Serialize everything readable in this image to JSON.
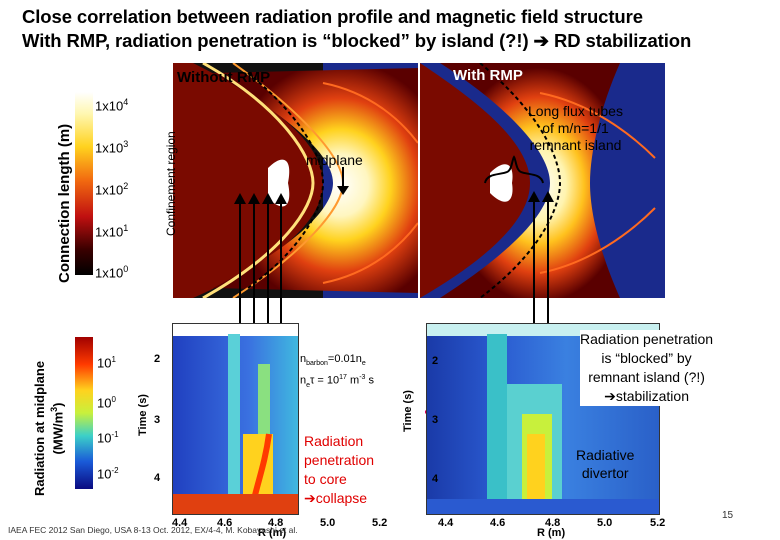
{
  "header": {
    "line1": "Close correlation between radiation profile and magnetic field structure",
    "line2": "With RMP, radiation penetration is “blocked” by island (?!) ➔ RD stabilization"
  },
  "top": {
    "ylabel": "Connection length (m)",
    "colorbar_ticks": [
      "1x10",
      "1x10",
      "1x10",
      "1x10",
      "1x10"
    ],
    "colorbar_exps": [
      "4",
      "3",
      "2",
      "1",
      "0"
    ],
    "left_title": "Without RMP",
    "right_title": "With RMP",
    "confinement_label": "Confinement region",
    "midplane_label": "midplane",
    "flux_tube_label": [
      "Long flux tubes",
      "of m/n=1/1",
      "remnant island"
    ]
  },
  "bottom": {
    "ylabel_line1": "Radiation at midplane",
    "ylabel_line2": "(MW/m",
    "ylabel_sup": "3",
    "ylabel_end": ")",
    "colorbar_ticks": [
      "10",
      "10",
      "10",
      "10"
    ],
    "colorbar_exps": [
      "1",
      "0",
      "-1",
      "-2"
    ],
    "time_label": "Time (s)",
    "time_ticks": [
      "2",
      "3",
      "4"
    ],
    "r_ticks": [
      "4.4",
      "4.6",
      "4.8",
      "5.0",
      "5.2"
    ],
    "r_label": "R (m)",
    "nbarbon_line1_a": "n",
    "nbarbon_line1_sub": "barbon",
    "nbarbon_line1_b": "=0.01n",
    "nbarbon_line1_sub2": "e",
    "nbarbon_line2_a": "n",
    "nbarbon_line2_sub": "e",
    "nbarbon_line2_b": "τ = 10",
    "nbarbon_line2_sup": "17",
    "nbarbon_line2_c": " m",
    "nbarbon_line2_sup2": "-3",
    "nbarbon_line2_d": " s",
    "left_annotation": [
      "Radiation",
      "penetration",
      "to core",
      "➔collapse"
    ],
    "right_annotation": [
      "Radiation penetration",
      "is “blocked” by",
      "remnant island (?!)",
      "➔stabilization"
    ],
    "divertor_label": [
      "Radiative",
      "divertor"
    ]
  },
  "footer": {
    "citation": "IAEA FEC 2012 San Diego, USA 8-13 Oct. 2012, EX/4-4, M. Kobayashi et al.",
    "page_number": "15"
  },
  "colors": {
    "title": "#000000",
    "annotation_red": "#e00000",
    "arrow_red": "#e00000",
    "dashed_magenta": "#e0005a",
    "arrow_green": "#6cc04a",
    "plasma_blue": "#1a2a8c"
  }
}
